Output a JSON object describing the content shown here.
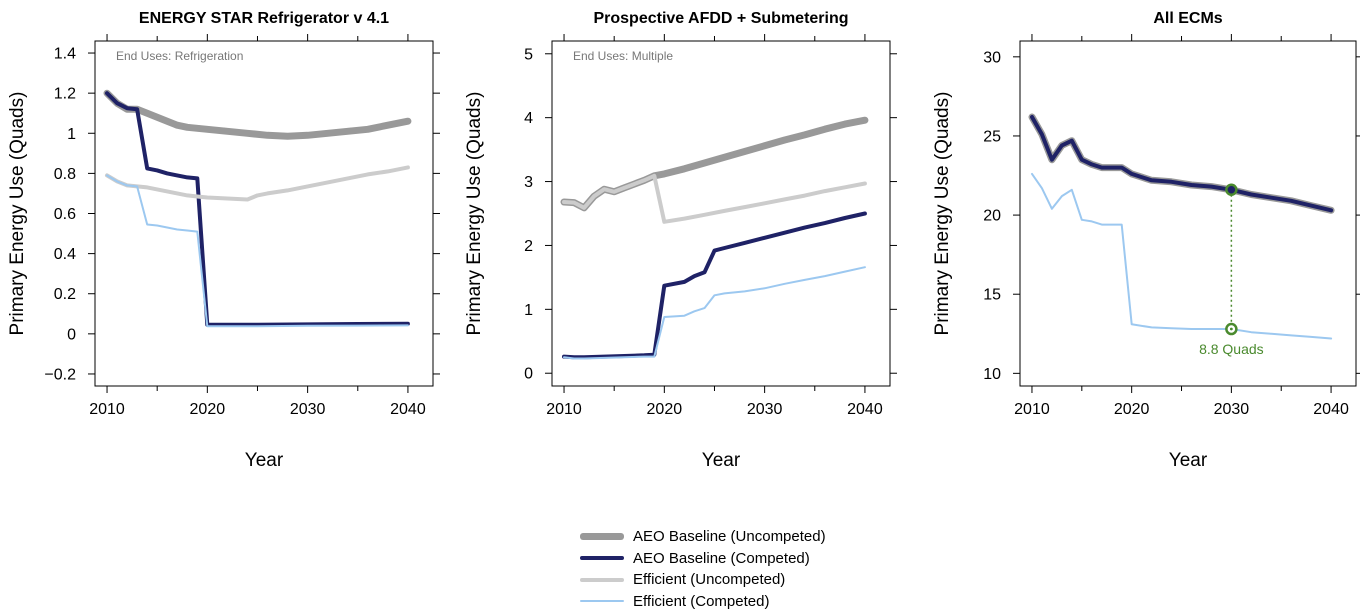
{
  "chart_data": [
    {
      "type": "line",
      "title": "ENERGY STAR Refrigerator v 4.1",
      "annotation": "End Uses: Refrigeration",
      "xlabel": "Year",
      "ylabel": "Primary Energy Use (Quads)",
      "xlim": [
        2008.8,
        2042.5
      ],
      "ylim": [
        -0.26,
        1.46
      ],
      "xticks": [
        2010,
        2020,
        2030,
        2040
      ],
      "xtick_labels": [
        "2010",
        "2020",
        "2030",
        "2040"
      ],
      "yticks": [
        -0.2,
        0,
        0.2,
        0.4,
        0.6,
        0.8,
        1,
        1.2,
        1.4
      ],
      "ytick_labels": [
        "−0.2",
        "0",
        "0.2",
        "0.4",
        "0.6",
        "0.8",
        "1",
        "1.2",
        "1.4"
      ],
      "series": [
        {
          "name": "AEO Baseline (Uncompeted)",
          "x": [
            2010,
            2011,
            2012,
            2013,
            2014,
            2015,
            2016,
            2017,
            2018,
            2019,
            2020,
            2022,
            2024,
            2026,
            2028,
            2030,
            2032,
            2034,
            2036,
            2038,
            2040
          ],
          "values": [
            1.2,
            1.15,
            1.12,
            1.12,
            1.1,
            1.08,
            1.06,
            1.04,
            1.03,
            1.025,
            1.02,
            1.01,
            1.0,
            0.99,
            0.985,
            0.99,
            1.0,
            1.01,
            1.02,
            1.04,
            1.06
          ]
        },
        {
          "name": "AEO Baseline (Competed)",
          "x": [
            2010,
            2011,
            2012,
            2013,
            2014,
            2015,
            2016,
            2017,
            2018,
            2019,
            2020,
            2025,
            2030,
            2035,
            2040
          ],
          "values": [
            1.2,
            1.15,
            1.125,
            1.12,
            0.825,
            0.815,
            0.8,
            0.79,
            0.78,
            0.775,
            0.045,
            0.045,
            0.047,
            0.049,
            0.05
          ]
        },
        {
          "name": "Efficient (Uncompeted)",
          "x": [
            2010,
            2011,
            2012,
            2013,
            2014,
            2015,
            2016,
            2017,
            2018,
            2019,
            2020,
            2022,
            2024,
            2025,
            2026,
            2028,
            2030,
            2032,
            2034,
            2036,
            2038,
            2040
          ],
          "values": [
            0.79,
            0.76,
            0.74,
            0.735,
            0.73,
            0.72,
            0.71,
            0.7,
            0.69,
            0.685,
            0.68,
            0.675,
            0.67,
            0.69,
            0.7,
            0.715,
            0.735,
            0.755,
            0.775,
            0.795,
            0.81,
            0.83
          ]
        },
        {
          "name": "Efficient (Competed)",
          "x": [
            2010,
            2011,
            2012,
            2013,
            2014,
            2015,
            2016,
            2017,
            2018,
            2019,
            2020,
            2025,
            2030,
            2035,
            2040
          ],
          "values": [
            0.79,
            0.76,
            0.74,
            0.735,
            0.545,
            0.54,
            0.53,
            0.52,
            0.515,
            0.51,
            0.038,
            0.038,
            0.04,
            0.041,
            0.042
          ]
        }
      ]
    },
    {
      "type": "line",
      "title": "Prospective AFDD + Submetering",
      "annotation": "End Uses: Multiple",
      "xlabel": "Year",
      "ylabel": "Primary Energy Use (Quads)",
      "xlim": [
        2008.8,
        2042.5
      ],
      "ylim": [
        -0.2,
        5.2
      ],
      "xticks": [
        2010,
        2020,
        2030,
        2040
      ],
      "xtick_labels": [
        "2010",
        "2020",
        "2030",
        "2040"
      ],
      "yticks": [
        0,
        1,
        2,
        3,
        4,
        5
      ],
      "ytick_labels": [
        "0",
        "1",
        "2",
        "3",
        "4",
        "5"
      ],
      "series": [
        {
          "name": "AEO Baseline (Uncompeted)",
          "x": [
            2010,
            2011,
            2012,
            2013,
            2014,
            2015,
            2016,
            2017,
            2018,
            2019,
            2020,
            2022,
            2024,
            2026,
            2028,
            2030,
            2032,
            2034,
            2036,
            2038,
            2040
          ],
          "values": [
            2.68,
            2.67,
            2.59,
            2.77,
            2.88,
            2.84,
            2.9,
            2.96,
            3.02,
            3.09,
            3.12,
            3.2,
            3.29,
            3.38,
            3.47,
            3.56,
            3.65,
            3.73,
            3.82,
            3.9,
            3.96
          ]
        },
        {
          "name": "AEO Baseline (Competed)",
          "x": [
            2010,
            2011,
            2012,
            2014,
            2016,
            2018,
            2019,
            2020,
            2022,
            2023,
            2024,
            2025,
            2026,
            2028,
            2030,
            2032,
            2034,
            2036,
            2038,
            2040
          ],
          "values": [
            0.26,
            0.25,
            0.25,
            0.26,
            0.27,
            0.28,
            0.29,
            1.37,
            1.43,
            1.52,
            1.58,
            1.92,
            1.96,
            2.04,
            2.12,
            2.2,
            2.28,
            2.35,
            2.43,
            2.5
          ]
        },
        {
          "name": "Efficient (Uncompeted)",
          "x": [
            2010,
            2011,
            2012,
            2013,
            2014,
            2015,
            2016,
            2017,
            2018,
            2019,
            2020,
            2022,
            2024,
            2026,
            2028,
            2030,
            2032,
            2034,
            2036,
            2038,
            2040
          ],
          "values": [
            2.68,
            2.67,
            2.59,
            2.77,
            2.88,
            2.84,
            2.9,
            2.96,
            3.02,
            3.09,
            2.37,
            2.42,
            2.48,
            2.54,
            2.6,
            2.66,
            2.72,
            2.78,
            2.85,
            2.91,
            2.97
          ]
        },
        {
          "name": "Efficient (Competed)",
          "x": [
            2010,
            2011,
            2012,
            2014,
            2016,
            2018,
            2019,
            2020,
            2022,
            2023,
            2024,
            2025,
            2026,
            2028,
            2030,
            2032,
            2034,
            2036,
            2038,
            2040
          ],
          "values": [
            0.25,
            0.23,
            0.23,
            0.24,
            0.25,
            0.26,
            0.26,
            0.88,
            0.9,
            0.97,
            1.02,
            1.22,
            1.25,
            1.28,
            1.33,
            1.4,
            1.46,
            1.52,
            1.59,
            1.66
          ]
        }
      ]
    },
    {
      "type": "line",
      "title": "All ECMs",
      "xlabel": "Year",
      "ylabel": "Primary Energy Use (Quads)",
      "xlim": [
        2008.8,
        2042.5
      ],
      "ylim": [
        9.2,
        31.0
      ],
      "xticks": [
        2010,
        2020,
        2030,
        2040
      ],
      "xtick_labels": [
        "2010",
        "2020",
        "2030",
        "2040"
      ],
      "yticks": [
        10,
        15,
        20,
        25,
        30
      ],
      "ytick_labels": [
        "10",
        "15",
        "20",
        "25",
        "30"
      ],
      "series": [
        {
          "name": "AEO Baseline (Uncompeted)",
          "x": [
            2010,
            2011,
            2012,
            2013,
            2014,
            2015,
            2016,
            2017,
            2018,
            2019,
            2020,
            2021,
            2022,
            2024,
            2026,
            2028,
            2030,
            2032,
            2034,
            2036,
            2038,
            2040
          ],
          "values": [
            26.2,
            25.1,
            23.5,
            24.4,
            24.7,
            23.5,
            23.2,
            23.0,
            23.0,
            23.0,
            22.6,
            22.4,
            22.2,
            22.1,
            21.9,
            21.8,
            21.6,
            21.3,
            21.1,
            20.9,
            20.6,
            20.3
          ]
        },
        {
          "name": "AEO Baseline (Competed)",
          "x": [
            2010,
            2011,
            2012,
            2013,
            2014,
            2015,
            2016,
            2017,
            2018,
            2019,
            2020,
            2021,
            2022,
            2024,
            2026,
            2028,
            2030,
            2032,
            2034,
            2036,
            2038,
            2040
          ],
          "values": [
            26.2,
            25.1,
            23.5,
            24.4,
            24.7,
            23.5,
            23.2,
            23.0,
            23.0,
            23.0,
            22.6,
            22.4,
            22.2,
            22.1,
            21.9,
            21.8,
            21.6,
            21.3,
            21.1,
            20.9,
            20.6,
            20.3
          ]
        },
        {
          "name": "Efficient (Competed)",
          "x": [
            2010,
            2011,
            2012,
            2013,
            2014,
            2015,
            2016,
            2017,
            2018,
            2019,
            2020,
            2022,
            2024,
            2026,
            2028,
            2030,
            2032,
            2034,
            2036,
            2038,
            2040
          ],
          "values": [
            22.6,
            21.7,
            20.4,
            21.2,
            21.6,
            19.7,
            19.6,
            19.4,
            19.4,
            19.4,
            13.1,
            12.9,
            12.85,
            12.8,
            12.8,
            12.8,
            12.6,
            12.5,
            12.4,
            12.3,
            12.2
          ]
        }
      ],
      "highlight": {
        "x": 2030,
        "baseline_value": 21.6,
        "efficient_value": 12.8,
        "label": "8.8 Quads",
        "color": "#4a8a2e"
      }
    }
  ],
  "legend": {
    "items": [
      {
        "label": "AEO Baseline (Uncompeted)",
        "color": "#999999",
        "weight": 7
      },
      {
        "label": "AEO Baseline (Competed)",
        "color": "#1f2266",
        "weight": 4
      },
      {
        "label": "Efficient (Uncompeted)",
        "color": "#cccccc",
        "weight": 4
      },
      {
        "label": "Efficient (Competed)",
        "color": "#9cc8f0",
        "weight": 2
      }
    ]
  }
}
